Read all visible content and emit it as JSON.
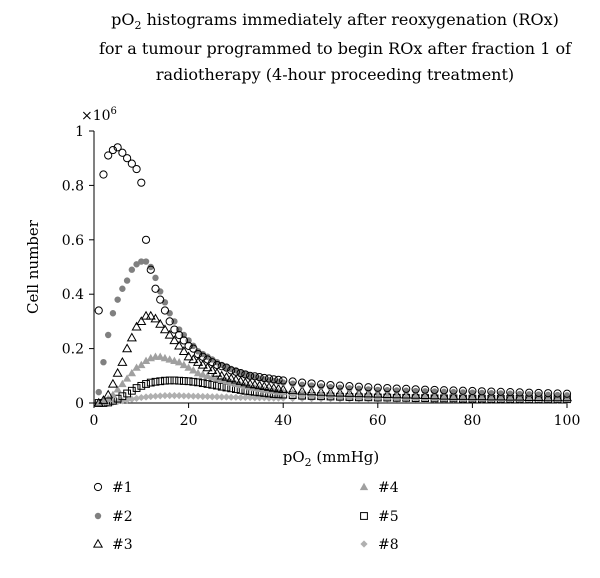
{
  "chart_data": {
    "type": "scatter",
    "title": {
      "line1_pre": "pO",
      "line1_sub": "2",
      "line1_post": " histograms immediately after reoxygenation (ROx)",
      "line2": "for a tumour programmed to begin ROx after fraction 1 of",
      "line3": "radiotherapy (4-hour proceeding treatment)"
    },
    "xlabel": {
      "pre": "pO",
      "sub": "2",
      "post": " (mmHg)"
    },
    "ylabel": "Cell number",
    "y_multiplier": {
      "base": "×10",
      "exp": "6"
    },
    "xlim": [
      0,
      100
    ],
    "ylim": [
      0,
      1
    ],
    "xticks": [
      "0",
      "20",
      "40",
      "60",
      "80",
      "100"
    ],
    "yticks": [
      "0",
      "0.2",
      "0.4",
      "0.6",
      "0.8",
      "1"
    ],
    "grid": false,
    "legend_position": "bottom",
    "series": [
      {
        "name": "#1",
        "marker": "circle-open",
        "color": "#000000",
        "x": [
          1,
          2,
          3,
          4,
          5,
          6,
          7,
          8,
          9,
          10,
          11,
          12,
          13,
          14,
          15,
          16,
          17,
          18,
          19,
          20,
          21,
          22,
          23,
          24,
          25,
          26,
          27,
          28,
          29,
          30,
          31,
          32,
          33,
          34,
          35,
          36,
          37,
          38,
          39,
          40,
          42,
          44,
          46,
          48,
          50,
          52,
          54,
          56,
          58,
          60,
          62,
          64,
          66,
          68,
          70,
          72,
          74,
          76,
          78,
          80,
          82,
          84,
          86,
          88,
          90,
          92,
          94,
          96,
          98,
          100
        ],
        "y": [
          0.34,
          0.84,
          0.91,
          0.93,
          0.94,
          0.92,
          0.9,
          0.88,
          0.86,
          0.81,
          0.6,
          0.49,
          0.42,
          0.38,
          0.34,
          0.3,
          0.27,
          0.25,
          0.23,
          0.21,
          0.2,
          0.18,
          0.17,
          0.16,
          0.15,
          0.14,
          0.135,
          0.13,
          0.12,
          0.115,
          0.11,
          0.105,
          0.1,
          0.098,
          0.095,
          0.092,
          0.09,
          0.087,
          0.085,
          0.083,
          0.079,
          0.075,
          0.072,
          0.069,
          0.066,
          0.064,
          0.062,
          0.06,
          0.058,
          0.056,
          0.055,
          0.053,
          0.052,
          0.05,
          0.049,
          0.048,
          0.047,
          0.046,
          0.045,
          0.044,
          0.043,
          0.042,
          0.041,
          0.04,
          0.039,
          0.038,
          0.037,
          0.036,
          0.035,
          0.034
        ]
      },
      {
        "name": "#2",
        "marker": "circle-filled",
        "color": "#808080",
        "x": [
          1,
          2,
          3,
          4,
          5,
          6,
          7,
          8,
          9,
          10,
          11,
          12,
          13,
          14,
          15,
          16,
          17,
          18,
          19,
          20,
          21,
          22,
          23,
          24,
          25,
          26,
          27,
          28,
          29,
          30,
          31,
          32,
          33,
          34,
          35,
          36,
          37,
          38,
          39,
          40,
          42,
          44,
          46,
          48,
          50,
          52,
          54,
          56,
          58,
          60,
          62,
          64,
          66,
          68,
          70,
          72,
          74,
          76,
          78,
          80,
          82,
          84,
          86,
          88,
          90,
          92,
          94,
          96,
          98,
          100
        ],
        "y": [
          0.04,
          0.15,
          0.25,
          0.33,
          0.38,
          0.42,
          0.45,
          0.49,
          0.51,
          0.52,
          0.52,
          0.5,
          0.46,
          0.41,
          0.37,
          0.33,
          0.3,
          0.27,
          0.25,
          0.23,
          0.21,
          0.19,
          0.18,
          0.17,
          0.16,
          0.15,
          0.14,
          0.13,
          0.125,
          0.12,
          0.11,
          0.105,
          0.1,
          0.095,
          0.09,
          0.087,
          0.084,
          0.081,
          0.078,
          0.075,
          0.071,
          0.067,
          0.064,
          0.061,
          0.058,
          0.056,
          0.054,
          0.052,
          0.05,
          0.048,
          0.047,
          0.046,
          0.045,
          0.044,
          0.043,
          0.042,
          0.041,
          0.04,
          0.039,
          0.038,
          0.037,
          0.036,
          0.035,
          0.034,
          0.033,
          0.032,
          0.031,
          0.03,
          0.029,
          0.028
        ]
      },
      {
        "name": "#3",
        "marker": "triangle-open",
        "color": "#000000",
        "x": [
          1,
          2,
          3,
          4,
          5,
          6,
          7,
          8,
          9,
          10,
          11,
          12,
          13,
          14,
          15,
          16,
          17,
          18,
          19,
          20,
          21,
          22,
          23,
          24,
          25,
          26,
          27,
          28,
          29,
          30,
          31,
          32,
          33,
          34,
          35,
          36,
          37,
          38,
          39,
          40,
          42,
          44,
          46,
          48,
          50,
          52,
          54,
          56,
          58,
          60,
          62,
          64,
          66,
          68,
          70,
          72,
          74,
          76,
          78,
          80,
          82,
          84,
          86,
          88,
          90,
          92,
          94,
          96,
          98,
          100
        ],
        "y": [
          0.0,
          0.01,
          0.03,
          0.07,
          0.11,
          0.15,
          0.2,
          0.24,
          0.28,
          0.3,
          0.32,
          0.32,
          0.31,
          0.29,
          0.27,
          0.25,
          0.23,
          0.21,
          0.19,
          0.17,
          0.16,
          0.15,
          0.14,
          0.13,
          0.12,
          0.11,
          0.1,
          0.095,
          0.09,
          0.085,
          0.08,
          0.075,
          0.07,
          0.067,
          0.064,
          0.061,
          0.058,
          0.055,
          0.052,
          0.05,
          0.047,
          0.044,
          0.042,
          0.04,
          0.038,
          0.037,
          0.036,
          0.035,
          0.034,
          0.033,
          0.032,
          0.031,
          0.03,
          0.029,
          0.028,
          0.027,
          0.026,
          0.025,
          0.025,
          0.024,
          0.024,
          0.023,
          0.023,
          0.022,
          0.022,
          0.021,
          0.021,
          0.02,
          0.02,
          0.02
        ]
      },
      {
        "name": "#4",
        "marker": "triangle-filled",
        "color": "#a0a0a0",
        "x": [
          1,
          2,
          3,
          4,
          5,
          6,
          7,
          8,
          9,
          10,
          11,
          12,
          13,
          14,
          15,
          16,
          17,
          18,
          19,
          20,
          21,
          22,
          23,
          24,
          25,
          26,
          27,
          28,
          29,
          30,
          31,
          32,
          33,
          34,
          35,
          36,
          37,
          38,
          39,
          40,
          42,
          44,
          46,
          48,
          50,
          52,
          54,
          56,
          58,
          60,
          62,
          64,
          66,
          68,
          70,
          72,
          74,
          76,
          78,
          80,
          82,
          84,
          86,
          88,
          90,
          92,
          94,
          96,
          98,
          100
        ],
        "y": [
          0.0,
          0.005,
          0.015,
          0.03,
          0.05,
          0.07,
          0.09,
          0.11,
          0.13,
          0.14,
          0.155,
          0.165,
          0.17,
          0.17,
          0.165,
          0.16,
          0.155,
          0.15,
          0.14,
          0.13,
          0.12,
          0.11,
          0.105,
          0.1,
          0.095,
          0.09,
          0.085,
          0.08,
          0.075,
          0.07,
          0.066,
          0.062,
          0.058,
          0.055,
          0.052,
          0.049,
          0.046,
          0.044,
          0.042,
          0.04,
          0.037,
          0.035,
          0.033,
          0.031,
          0.03,
          0.029,
          0.028,
          0.027,
          0.026,
          0.025,
          0.024,
          0.024,
          0.023,
          0.023,
          0.022,
          0.022,
          0.021,
          0.021,
          0.02,
          0.02,
          0.02,
          0.019,
          0.019,
          0.019,
          0.018,
          0.018,
          0.018,
          0.018,
          0.017,
          0.017
        ]
      },
      {
        "name": "#5",
        "marker": "square-open",
        "color": "#000000",
        "x": [
          1,
          2,
          3,
          4,
          5,
          6,
          7,
          8,
          9,
          10,
          11,
          12,
          13,
          14,
          15,
          16,
          17,
          18,
          19,
          20,
          21,
          22,
          23,
          24,
          25,
          26,
          27,
          28,
          29,
          30,
          31,
          32,
          33,
          34,
          35,
          36,
          37,
          38,
          39,
          40,
          42,
          44,
          46,
          48,
          50,
          52,
          54,
          56,
          58,
          60,
          62,
          64,
          66,
          68,
          70,
          72,
          74,
          76,
          78,
          80,
          82,
          84,
          86,
          88,
          90,
          92,
          94,
          96,
          98,
          100
        ],
        "y": [
          0.0,
          0.0,
          0.002,
          0.008,
          0.016,
          0.025,
          0.035,
          0.045,
          0.055,
          0.063,
          0.07,
          0.075,
          0.078,
          0.08,
          0.082,
          0.083,
          0.083,
          0.082,
          0.081,
          0.08,
          0.078,
          0.076,
          0.073,
          0.07,
          0.067,
          0.064,
          0.06,
          0.057,
          0.054,
          0.051,
          0.048,
          0.045,
          0.043,
          0.041,
          0.039,
          0.037,
          0.035,
          0.033,
          0.032,
          0.031,
          0.029,
          0.027,
          0.026,
          0.025,
          0.024,
          0.023,
          0.022,
          0.021,
          0.021,
          0.02,
          0.02,
          0.019,
          0.019,
          0.018,
          0.018,
          0.017,
          0.017,
          0.017,
          0.016,
          0.016,
          0.016,
          0.015,
          0.015,
          0.015,
          0.015,
          0.014,
          0.014,
          0.014,
          0.014,
          0.014
        ]
      },
      {
        "name": "#8",
        "marker": "diamond-filled",
        "color": "#b0b0b0",
        "x": [
          1,
          2,
          3,
          4,
          5,
          6,
          7,
          8,
          9,
          10,
          11,
          12,
          13,
          14,
          15,
          16,
          17,
          18,
          19,
          20,
          21,
          22,
          23,
          24,
          25,
          26,
          27,
          28,
          29,
          30,
          31,
          32,
          33,
          34,
          35,
          36,
          37,
          38,
          39,
          40,
          42,
          44,
          46,
          48,
          50,
          52,
          54,
          56,
          58,
          60,
          62,
          64,
          66,
          68,
          70,
          72,
          74,
          76,
          78,
          80,
          82,
          84,
          86,
          88,
          90,
          92,
          94,
          96,
          98,
          100
        ],
        "y": [
          0.0,
          0.0,
          0.0,
          0.002,
          0.005,
          0.008,
          0.011,
          0.014,
          0.017,
          0.02,
          0.022,
          0.024,
          0.025,
          0.026,
          0.027,
          0.027,
          0.027,
          0.027,
          0.026,
          0.026,
          0.025,
          0.025,
          0.024,
          0.024,
          0.023,
          0.023,
          0.022,
          0.022,
          0.021,
          0.021,
          0.02,
          0.02,
          0.02,
          0.019,
          0.019,
          0.019,
          0.018,
          0.018,
          0.018,
          0.018,
          0.017,
          0.017,
          0.016,
          0.016,
          0.016,
          0.015,
          0.015,
          0.015,
          0.015,
          0.014,
          0.014,
          0.014,
          0.014,
          0.014,
          0.013,
          0.013,
          0.013,
          0.013,
          0.013,
          0.013,
          0.012,
          0.012,
          0.012,
          0.012,
          0.012,
          0.012,
          0.012,
          0.012,
          0.011,
          0.011
        ]
      }
    ]
  }
}
